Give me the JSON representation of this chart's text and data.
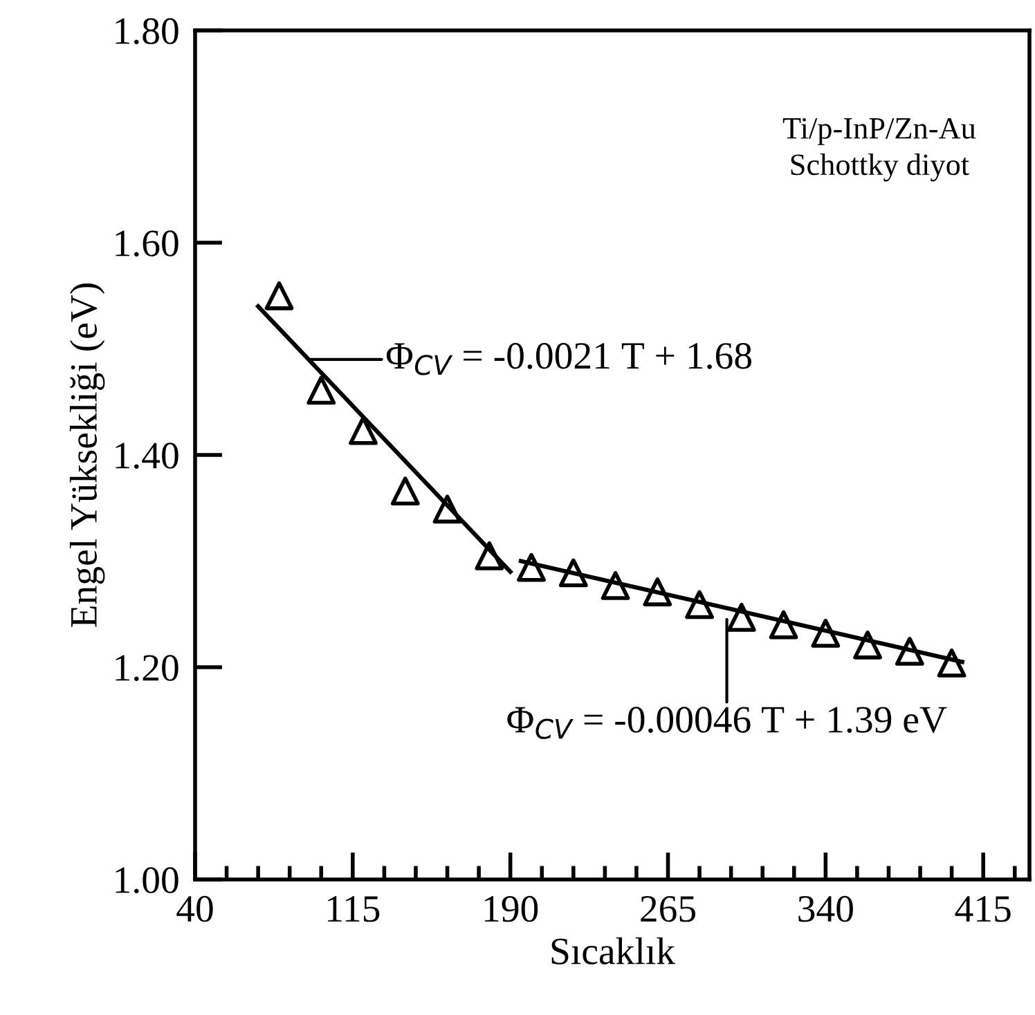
{
  "chart_data": {
    "type": "scatter",
    "xlabel": "Sıcaklık",
    "ylabel": "Engel Yüksekliği (eV)",
    "xlim": [
      40,
      437
    ],
    "ylim": [
      1.0,
      1.8
    ],
    "xticks": [
      40,
      115,
      190,
      265,
      340,
      415
    ],
    "yticks": [
      {
        "value": 1.0,
        "label": "1.00"
      },
      {
        "value": 1.2,
        "label": "1.20"
      },
      {
        "value": 1.4,
        "label": "1.40"
      },
      {
        "value": 1.6,
        "label": "1.60"
      },
      {
        "value": 1.8,
        "label": "1.80"
      }
    ],
    "grid": false,
    "legend": false,
    "series": [
      {
        "color": "#000000",
        "marker": "triangle",
        "x": [
          80,
          100,
          120,
          140,
          160,
          180,
          200,
          220,
          240,
          260,
          280,
          300,
          320,
          340,
          360,
          380,
          400
        ],
        "values": [
          1.55,
          1.461,
          1.423,
          1.366,
          1.349,
          1.305,
          1.294,
          1.289,
          1.277,
          1.271,
          1.259,
          1.247,
          1.24,
          1.232,
          1.221,
          1.215,
          1.204
        ]
      },
      {
        "type": "line",
        "color": "#000000",
        "x": [
          70,
          190
        ],
        "values": [
          1.54,
          1.29
        ]
      },
      {
        "type": "line",
        "color": "#000000",
        "x": [
          195,
          405
        ],
        "values": [
          1.3,
          1.205
        ]
      }
    ],
    "annotations": [
      {
        "text": "Φ$_{CV}$ = -0.0021 T + 1.68",
        "x": 94,
        "y": 1.49
      },
      {
        "text": "Φ$_{CV}$ = -0.00046 T + 1.39 eV",
        "x": 293,
        "y": 1.245
      },
      "Ti/p-InP/Zn-Au\nSchottky diyot"
    ]
  }
}
